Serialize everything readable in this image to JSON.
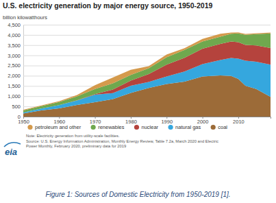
{
  "chart_data": {
    "type": "area",
    "title": "U.S. electricity generation by major energy source, 1950-2019",
    "y_label": "billion kilowatthours",
    "x": [
      1950,
      1955,
      1960,
      1965,
      1970,
      1975,
      1980,
      1985,
      1990,
      1995,
      2000,
      2005,
      2008,
      2010,
      2012,
      2015,
      2019
    ],
    "series": [
      {
        "name": "petroleum and other",
        "color": "#d49a4c",
        "values": [
          34,
          37,
          48,
          65,
          184,
          289,
          246,
          100,
          136,
          85,
          125,
          141,
          63,
          56,
          45,
          37,
          39
        ]
      },
      {
        "name": "renewables",
        "color": "#6fa84e",
        "values": [
          100,
          116,
          149,
          197,
          250,
          303,
          285,
          293,
          357,
          384,
          356,
          358,
          380,
          427,
          494,
          557,
          720
        ]
      },
      {
        "name": "nuclear",
        "color": "#b5433d",
        "values": [
          0,
          0,
          0.5,
          4,
          22,
          173,
          251,
          384,
          577,
          673,
          754,
          782,
          806,
          807,
          769,
          797,
          809
        ]
      },
      {
        "name": "natural gas",
        "color": "#35a7de",
        "values": [
          45,
          95,
          158,
          222,
          373,
          300,
          346,
          292,
          373,
          496,
          601,
          761,
          883,
          988,
          1225,
          1335,
          1582
        ]
      },
      {
        "name": "coal",
        "color": "#9c6b38",
        "values": [
          155,
          301,
          403,
          571,
          704,
          853,
          1162,
          1402,
          1594,
          1709,
          1966,
          2013,
          1986,
          1847,
          1514,
          1352,
          965
        ]
      }
    ],
    "stacked": true,
    "xlim": [
      1950,
      2019
    ],
    "xticks": [
      1950,
      1960,
      1970,
      1980,
      1990,
      2000,
      2010
    ],
    "ylim": [
      0,
      4500
    ],
    "yticks": [
      0,
      500,
      {
        "value": 1000,
        "label": "1,000"
      },
      {
        "value": 1500,
        "label": "1,500"
      },
      {
        "value": 2000,
        "label": "2,000"
      },
      {
        "value": 2500,
        "label": "2,500"
      },
      {
        "value": 3000,
        "label": "3,000"
      },
      {
        "value": 3500,
        "label": "3,500"
      },
      {
        "value": 4000,
        "label": "4,000"
      },
      {
        "value": 4500,
        "label": "4,500"
      }
    ],
    "grid": true,
    "legend": "bottom",
    "note": "Note: Electricity generation from utility-scale facilities.",
    "source": [
      "Source: U.S. Energy Information Administration, Monthly Energy Review, Table 7.2a, March 2020 and Electric",
      "Power Monthly, February 2020, preliminary data for 2019"
    ],
    "logo": "eia",
    "caption": "Figure 1: Sources of Domestic Electricity from 1950-2019 [1]."
  }
}
